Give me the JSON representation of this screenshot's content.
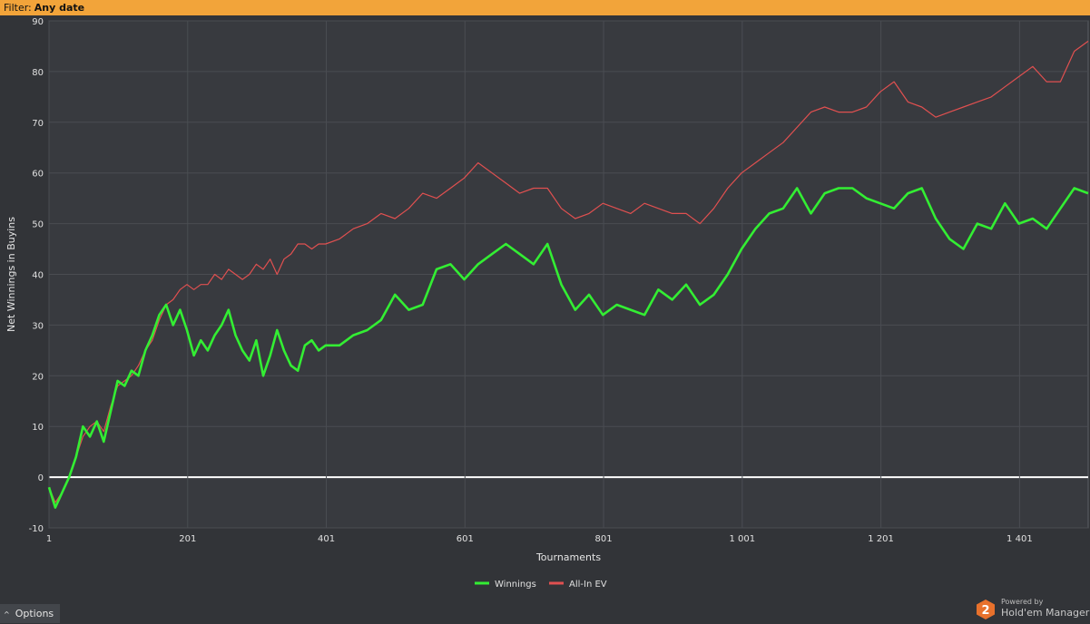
{
  "filter": {
    "label": "Filter:",
    "value": "Any date"
  },
  "options": {
    "label": "Options",
    "caret": "^"
  },
  "brand": {
    "powered_by": "Powered by",
    "product": "Hold'em Manager",
    "badge_number": "2",
    "icon": "hm2-logo-icon"
  },
  "colors": {
    "winnings": "#33ee33",
    "allin_ev": "#e05050",
    "zero_line": "#ffffff",
    "filter_bar": "#f2a43a"
  },
  "chart_data": {
    "type": "line",
    "xlabel": "Tournaments",
    "ylabel": "Net Winnings in Buyins",
    "xlim": [
      1,
      1500
    ],
    "ylim": [
      -10,
      90
    ],
    "x_ticks": [
      1,
      201,
      401,
      601,
      801,
      1001,
      1201,
      1401
    ],
    "x_tick_labels": [
      "1",
      "201",
      "401",
      "601",
      "801",
      "1 001",
      "1 201",
      "1 401"
    ],
    "y_ticks": [
      -10,
      0,
      10,
      20,
      30,
      40,
      50,
      60,
      70,
      80,
      90
    ],
    "y_tick_labels": [
      "-10",
      "0",
      "10",
      "20",
      "30",
      "40",
      "50",
      "60",
      "70",
      "80",
      "90"
    ],
    "grid": true,
    "legend_position": "bottom-center",
    "x": [
      1,
      10,
      20,
      30,
      40,
      50,
      60,
      70,
      80,
      90,
      100,
      110,
      120,
      130,
      140,
      150,
      160,
      170,
      180,
      190,
      200,
      210,
      220,
      230,
      240,
      250,
      260,
      270,
      280,
      290,
      300,
      310,
      320,
      330,
      340,
      350,
      360,
      370,
      380,
      390,
      400,
      420,
      440,
      460,
      480,
      500,
      520,
      540,
      560,
      580,
      600,
      620,
      640,
      660,
      680,
      700,
      720,
      740,
      760,
      780,
      800,
      820,
      840,
      860,
      880,
      900,
      920,
      940,
      960,
      980,
      1000,
      1020,
      1040,
      1060,
      1080,
      1100,
      1120,
      1140,
      1160,
      1180,
      1200,
      1220,
      1240,
      1260,
      1280,
      1300,
      1320,
      1340,
      1360,
      1380,
      1400,
      1420,
      1440,
      1460,
      1480,
      1500
    ],
    "series": [
      {
        "name": "Winnings",
        "values": [
          -2,
          -6,
          -3,
          0,
          4,
          10,
          8,
          11,
          7,
          13,
          19,
          18,
          21,
          20,
          25,
          28,
          32,
          34,
          30,
          33,
          29,
          24,
          27,
          25,
          28,
          30,
          33,
          28,
          25,
          23,
          27,
          20,
          24,
          29,
          25,
          22,
          21,
          26,
          27,
          25,
          26,
          26,
          28,
          29,
          31,
          36,
          33,
          34,
          41,
          42,
          39,
          42,
          44,
          46,
          44,
          42,
          46,
          38,
          33,
          36,
          32,
          34,
          33,
          32,
          37,
          35,
          38,
          34,
          36,
          40,
          45,
          49,
          52,
          53,
          57,
          52,
          56,
          57,
          57,
          55,
          54,
          53,
          56,
          57,
          51,
          47,
          45,
          50,
          49,
          54,
          50,
          51,
          49,
          53,
          57,
          56
        ]
      },
      {
        "name": "All-In EV",
        "values": [
          -2,
          -5,
          -3,
          0,
          4,
          8,
          10,
          11,
          9,
          14,
          18,
          19,
          20,
          22,
          25,
          27,
          31,
          34,
          35,
          37,
          38,
          37,
          38,
          38,
          40,
          39,
          41,
          40,
          39,
          40,
          42,
          41,
          43,
          40,
          43,
          44,
          46,
          46,
          45,
          46,
          46,
          47,
          49,
          50,
          52,
          51,
          53,
          56,
          55,
          57,
          59,
          62,
          60,
          58,
          56,
          57,
          57,
          53,
          51,
          52,
          54,
          53,
          52,
          54,
          53,
          52,
          52,
          50,
          53,
          57,
          60,
          62,
          64,
          66,
          69,
          72,
          73,
          72,
          72,
          73,
          76,
          78,
          74,
          73,
          71,
          72,
          73,
          74,
          75,
          77,
          79,
          81,
          78,
          78,
          84,
          86
        ]
      }
    ]
  }
}
